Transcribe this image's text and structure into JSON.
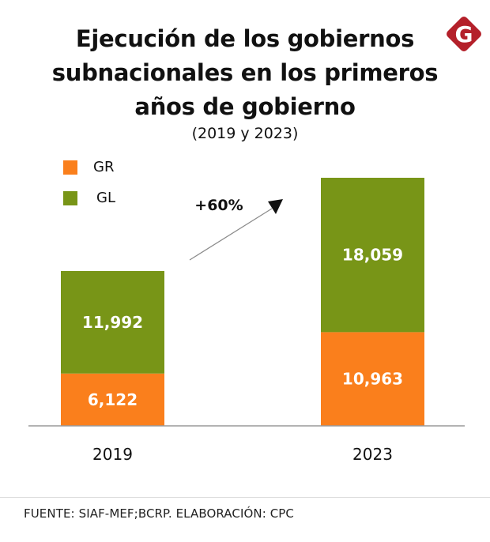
{
  "logo": {
    "letter": "G",
    "color": "#b4202a"
  },
  "chart_data": {
    "type": "bar",
    "stacked": true,
    "title": "Ejecución de los gobiernos subnacionales en los primeros años de gobierno",
    "title_lines": [
      "Ejecución de los gobiernos",
      "subnacionales en los primeros",
      "años de gobierno"
    ],
    "subtitle": "(2019 y 2023)",
    "categories": [
      "2019",
      "2023"
    ],
    "series": [
      {
        "name": "GR",
        "color": "#fa7f1c",
        "values": [
          6122,
          10963
        ],
        "labels": [
          "6,122",
          "10,963"
        ]
      },
      {
        "name": "GL",
        "color": "#789517",
        "values": [
          11992,
          18059
        ],
        "labels": [
          "11,992",
          "18,059"
        ]
      }
    ],
    "annotation": {
      "text": "+60%",
      "type": "arrow",
      "from": "2019",
      "to": "2023"
    },
    "xlabel": "",
    "ylabel": "",
    "ylim": [
      0,
      29022
    ],
    "grid": false,
    "legend": "top-left"
  },
  "footer": {
    "source": "FUENTE:  SIAF-MEF;BCRP. ELABORACIÓN: CPC"
  }
}
